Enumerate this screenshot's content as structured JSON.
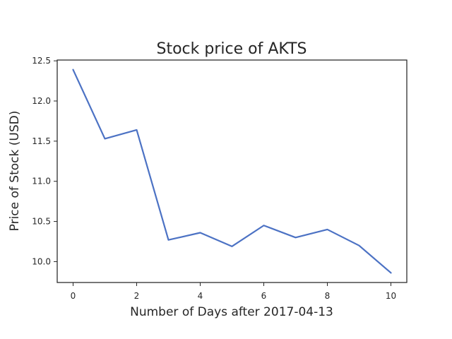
{
  "chart_data": {
    "type": "line",
    "title": "Stock price of AKTS",
    "xlabel": "Number of Days after 2017-04-13",
    "ylabel": "Price of Stock (USD)",
    "x": [
      0,
      1,
      2,
      3,
      4,
      5,
      6,
      7,
      8,
      9,
      10
    ],
    "series": [
      {
        "values": [
          12.39,
          11.53,
          11.64,
          10.27,
          10.36,
          10.19,
          10.45,
          10.3,
          10.4,
          10.2,
          9.86
        ],
        "color": "#4c72c4"
      }
    ],
    "xlim": [
      -0.5,
      10.5
    ],
    "ylim": [
      9.74,
      12.51
    ],
    "xticks": [
      "0",
      "2",
      "4",
      "6",
      "8",
      "10"
    ],
    "yticks": [
      "10.0",
      "10.5",
      "11.0",
      "11.5",
      "12.0",
      "12.5"
    ],
    "grid": false,
    "legend": "none"
  }
}
